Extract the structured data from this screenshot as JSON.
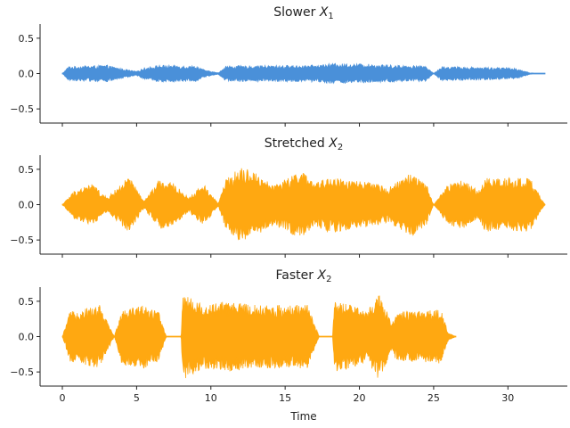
{
  "chart_data": [
    {
      "type": "line",
      "title": "Slower X₁",
      "title_parts": {
        "text": "Slower ",
        "var": "X",
        "sub": "1"
      },
      "color": "#4a90d9",
      "xlim": [
        -1.5,
        34
      ],
      "ylim": [
        -0.7,
        0.7
      ],
      "yticks": [
        0.5,
        0.0,
        -0.5
      ],
      "ytick_labels": [
        "0.5",
        "0.0",
        "−0.5"
      ],
      "xticks": [
        0,
        5,
        10,
        15,
        20,
        25,
        30
      ],
      "show_xtick_labels": false,
      "signal_x_range": [
        0.0,
        32.5
      ],
      "envelope": [
        {
          "x": 0.0,
          "amp": 0.0
        },
        {
          "x": 0.4,
          "amp": 0.1
        },
        {
          "x": 3.0,
          "amp": 0.12
        },
        {
          "x": 4.0,
          "amp": 0.07
        },
        {
          "x": 5.0,
          "amp": 0.03
        },
        {
          "x": 5.5,
          "amp": 0.08
        },
        {
          "x": 6.5,
          "amp": 0.12
        },
        {
          "x": 9.0,
          "amp": 0.11
        },
        {
          "x": 9.6,
          "amp": 0.05
        },
        {
          "x": 10.5,
          "amp": 0.01
        },
        {
          "x": 11.0,
          "amp": 0.11
        },
        {
          "x": 17.0,
          "amp": 0.12
        },
        {
          "x": 18.0,
          "amp": 0.14
        },
        {
          "x": 20.0,
          "amp": 0.14
        },
        {
          "x": 22.5,
          "amp": 0.12
        },
        {
          "x": 24.5,
          "amp": 0.11
        },
        {
          "x": 25.0,
          "amp": 0.0
        },
        {
          "x": 25.5,
          "amp": 0.1
        },
        {
          "x": 28.5,
          "amp": 0.09
        },
        {
          "x": 30.5,
          "amp": 0.08
        },
        {
          "x": 31.5,
          "amp": 0.01
        },
        {
          "x": 32.5,
          "amp": 0.0
        }
      ]
    },
    {
      "type": "line",
      "title": "Stretched X₂",
      "title_parts": {
        "text": "Stretched ",
        "var": "X",
        "sub": "2"
      },
      "color": "#ffa811",
      "xlim": [
        -1.5,
        34
      ],
      "ylim": [
        -0.7,
        0.7
      ],
      "yticks": [
        0.5,
        0.0,
        -0.5
      ],
      "ytick_labels": [
        "0.5",
        "0.0",
        "−0.5"
      ],
      "xticks": [
        0,
        5,
        10,
        15,
        20,
        25,
        30
      ],
      "show_xtick_labels": false,
      "signal_x_range": [
        0.0,
        32.5
      ],
      "envelope": [
        {
          "x": 0.0,
          "amp": 0.0
        },
        {
          "x": 0.8,
          "amp": 0.2
        },
        {
          "x": 2.0,
          "amp": 0.3
        },
        {
          "x": 3.0,
          "amp": 0.1
        },
        {
          "x": 4.5,
          "amp": 0.4
        },
        {
          "x": 5.5,
          "amp": 0.05
        },
        {
          "x": 6.5,
          "amp": 0.35
        },
        {
          "x": 7.5,
          "amp": 0.3
        },
        {
          "x": 8.5,
          "amp": 0.1
        },
        {
          "x": 9.5,
          "amp": 0.3
        },
        {
          "x": 10.5,
          "amp": 0.02
        },
        {
          "x": 11.0,
          "amp": 0.35
        },
        {
          "x": 12.0,
          "amp": 0.55
        },
        {
          "x": 13.0,
          "amp": 0.45
        },
        {
          "x": 14.0,
          "amp": 0.3
        },
        {
          "x": 15.0,
          "amp": 0.35
        },
        {
          "x": 16.0,
          "amp": 0.5
        },
        {
          "x": 17.0,
          "amp": 0.3
        },
        {
          "x": 18.0,
          "amp": 0.4
        },
        {
          "x": 19.5,
          "amp": 0.35
        },
        {
          "x": 21.0,
          "amp": 0.3
        },
        {
          "x": 22.0,
          "amp": 0.25
        },
        {
          "x": 23.5,
          "amp": 0.45
        },
        {
          "x": 24.5,
          "amp": 0.3
        },
        {
          "x": 25.0,
          "amp": 0.0
        },
        {
          "x": 26.0,
          "amp": 0.3
        },
        {
          "x": 27.0,
          "amp": 0.35
        },
        {
          "x": 28.0,
          "amp": 0.2
        },
        {
          "x": 28.5,
          "amp": 0.38
        },
        {
          "x": 31.5,
          "amp": 0.38
        },
        {
          "x": 32.2,
          "amp": 0.1
        },
        {
          "x": 32.5,
          "amp": 0.0
        }
      ]
    },
    {
      "type": "line",
      "title": "Faster X₂",
      "title_parts": {
        "text": "Faster ",
        "var": "X",
        "sub": "2"
      },
      "color": "#ffa811",
      "xlim": [
        -1.5,
        34
      ],
      "ylim": [
        -0.7,
        0.7
      ],
      "yticks": [
        0.5,
        0.0,
        -0.5
      ],
      "ytick_labels": [
        "0.5",
        "0.0",
        "−0.5"
      ],
      "xticks": [
        0,
        5,
        10,
        15,
        20,
        25,
        30
      ],
      "xtick_labels": [
        "0",
        "5",
        "10",
        "15",
        "20",
        "25",
        "30"
      ],
      "show_xtick_labels": true,
      "xlabel": "Time",
      "signal_x_range": [
        0.0,
        26.5
      ],
      "envelope": [
        {
          "x": 0.0,
          "amp": 0.0
        },
        {
          "x": 0.5,
          "amp": 0.35
        },
        {
          "x": 1.5,
          "amp": 0.4
        },
        {
          "x": 2.5,
          "amp": 0.45
        },
        {
          "x": 3.5,
          "amp": 0.0
        },
        {
          "x": 4.0,
          "amp": 0.4
        },
        {
          "x": 5.5,
          "amp": 0.45
        },
        {
          "x": 6.5,
          "amp": 0.35
        },
        {
          "x": 7.0,
          "amp": 0.0
        },
        {
          "x": 8.0,
          "amp": 0.0
        },
        {
          "x": 8.1,
          "amp": 0.62
        },
        {
          "x": 9.5,
          "amp": 0.45
        },
        {
          "x": 11.0,
          "amp": 0.5
        },
        {
          "x": 13.0,
          "amp": 0.45
        },
        {
          "x": 15.0,
          "amp": 0.45
        },
        {
          "x": 16.5,
          "amp": 0.45
        },
        {
          "x": 17.3,
          "amp": 0.0
        },
        {
          "x": 18.2,
          "amp": 0.0
        },
        {
          "x": 18.3,
          "amp": 0.5
        },
        {
          "x": 19.5,
          "amp": 0.45
        },
        {
          "x": 20.5,
          "amp": 0.35
        },
        {
          "x": 21.3,
          "amp": 0.62
        },
        {
          "x": 22.2,
          "amp": 0.2
        },
        {
          "x": 22.5,
          "amp": 0.35
        },
        {
          "x": 25.5,
          "amp": 0.38
        },
        {
          "x": 26.0,
          "amp": 0.05
        },
        {
          "x": 26.5,
          "amp": 0.0
        }
      ]
    }
  ]
}
